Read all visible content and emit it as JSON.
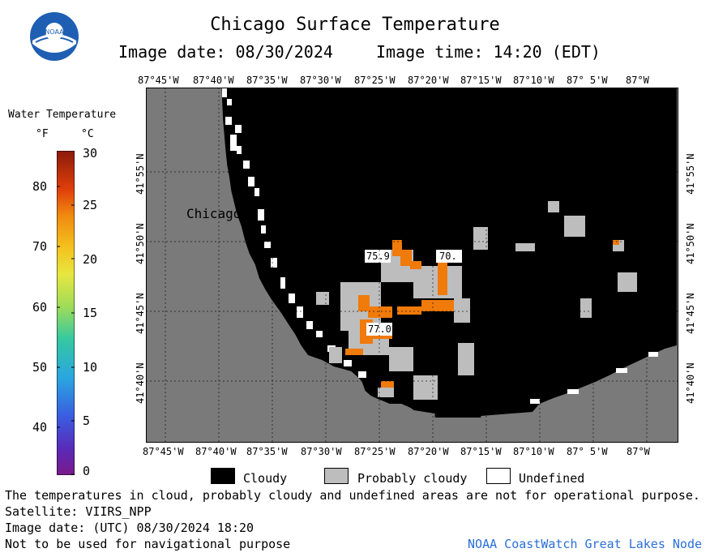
{
  "header": {
    "title": "Chicago Surface Temperature",
    "image_date": "Image date: 08/30/2024",
    "image_time": "Image time: 14:20 (EDT)",
    "logo_text": "NOAA"
  },
  "colorbar": {
    "title": "Water Temperature",
    "unit_f": "°F",
    "unit_c": "°C",
    "f_ticks": [
      "80",
      "70",
      "60",
      "50",
      "40"
    ],
    "c_ticks": [
      "30",
      "25",
      "20",
      "15",
      "10",
      "5",
      "0"
    ]
  },
  "map": {
    "lon_labels": [
      "87°45'W",
      "87°40'W",
      "87°35'W",
      "87°30'W",
      "87°25'W",
      "87°20'W",
      "87°15'W",
      "87°10'W",
      "87° 5'W",
      "87°W"
    ],
    "lat_labels": [
      "41°55'N",
      "41°50'N",
      "41°45'N",
      "41°40'N"
    ],
    "city_label": "Chicago",
    "temp_labels": [
      "75.9",
      "70.",
      "77.0"
    ],
    "colors": {
      "land": "#7a7a7a",
      "cloudy": "#000000",
      "probably_cloudy": "#bdbdbd",
      "undefined": "#ffffff",
      "warm_water": "#f07a0a"
    }
  },
  "legend": {
    "cloudy": "Cloudy",
    "probably_cloudy": "Probably cloudy",
    "undefined": "Undefined"
  },
  "footer": {
    "disclaimer": "The temperatures in cloud, probably cloudy and undefined areas are not for operational purpose.",
    "satellite": "Satellite: VIIRS_NPP",
    "utc_date": "Image date: (UTC) 08/30/2024  18:20",
    "nav_warning": "Not to be used for navigational purpose",
    "node": "NOAA CoastWatch Great Lakes Node"
  }
}
